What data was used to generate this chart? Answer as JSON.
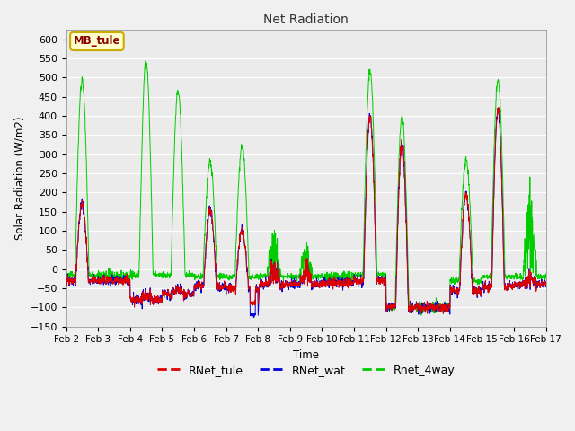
{
  "title": "Net Radiation",
  "ylabel": "Solar Radiation (W/m2)",
  "xlabel": "Time",
  "ylim": [
    -150,
    625
  ],
  "yticks": [
    -150,
    -100,
    -50,
    0,
    50,
    100,
    150,
    200,
    250,
    300,
    350,
    400,
    450,
    500,
    550,
    600
  ],
  "colors": {
    "rnet_tule": "#dd0000",
    "rnet_wat": "#0000dd",
    "rnet_4way": "#00cc00"
  },
  "background_color": "#e0e0e0",
  "plot_bg": "#ebebeb",
  "legend_labels": [
    "RNet_tule",
    "RNet_wat",
    "Rnet_4way"
  ],
  "annotation": "MB_tule",
  "annotation_bg": "#ffffcc",
  "annotation_border": "#ccaa00",
  "x_tick_labels": [
    "Feb 2",
    "Feb 3",
    "Feb 4",
    "Feb 5",
    "Feb 6",
    "Feb 7",
    "Feb 8",
    "Feb 9",
    "Feb 10",
    "Feb 11",
    "Feb 12",
    "Feb 13",
    "Feb 14",
    "Feb 15",
    "Feb 16",
    "Feb 17"
  ],
  "n_points_per_day": 144,
  "n_days": 15
}
